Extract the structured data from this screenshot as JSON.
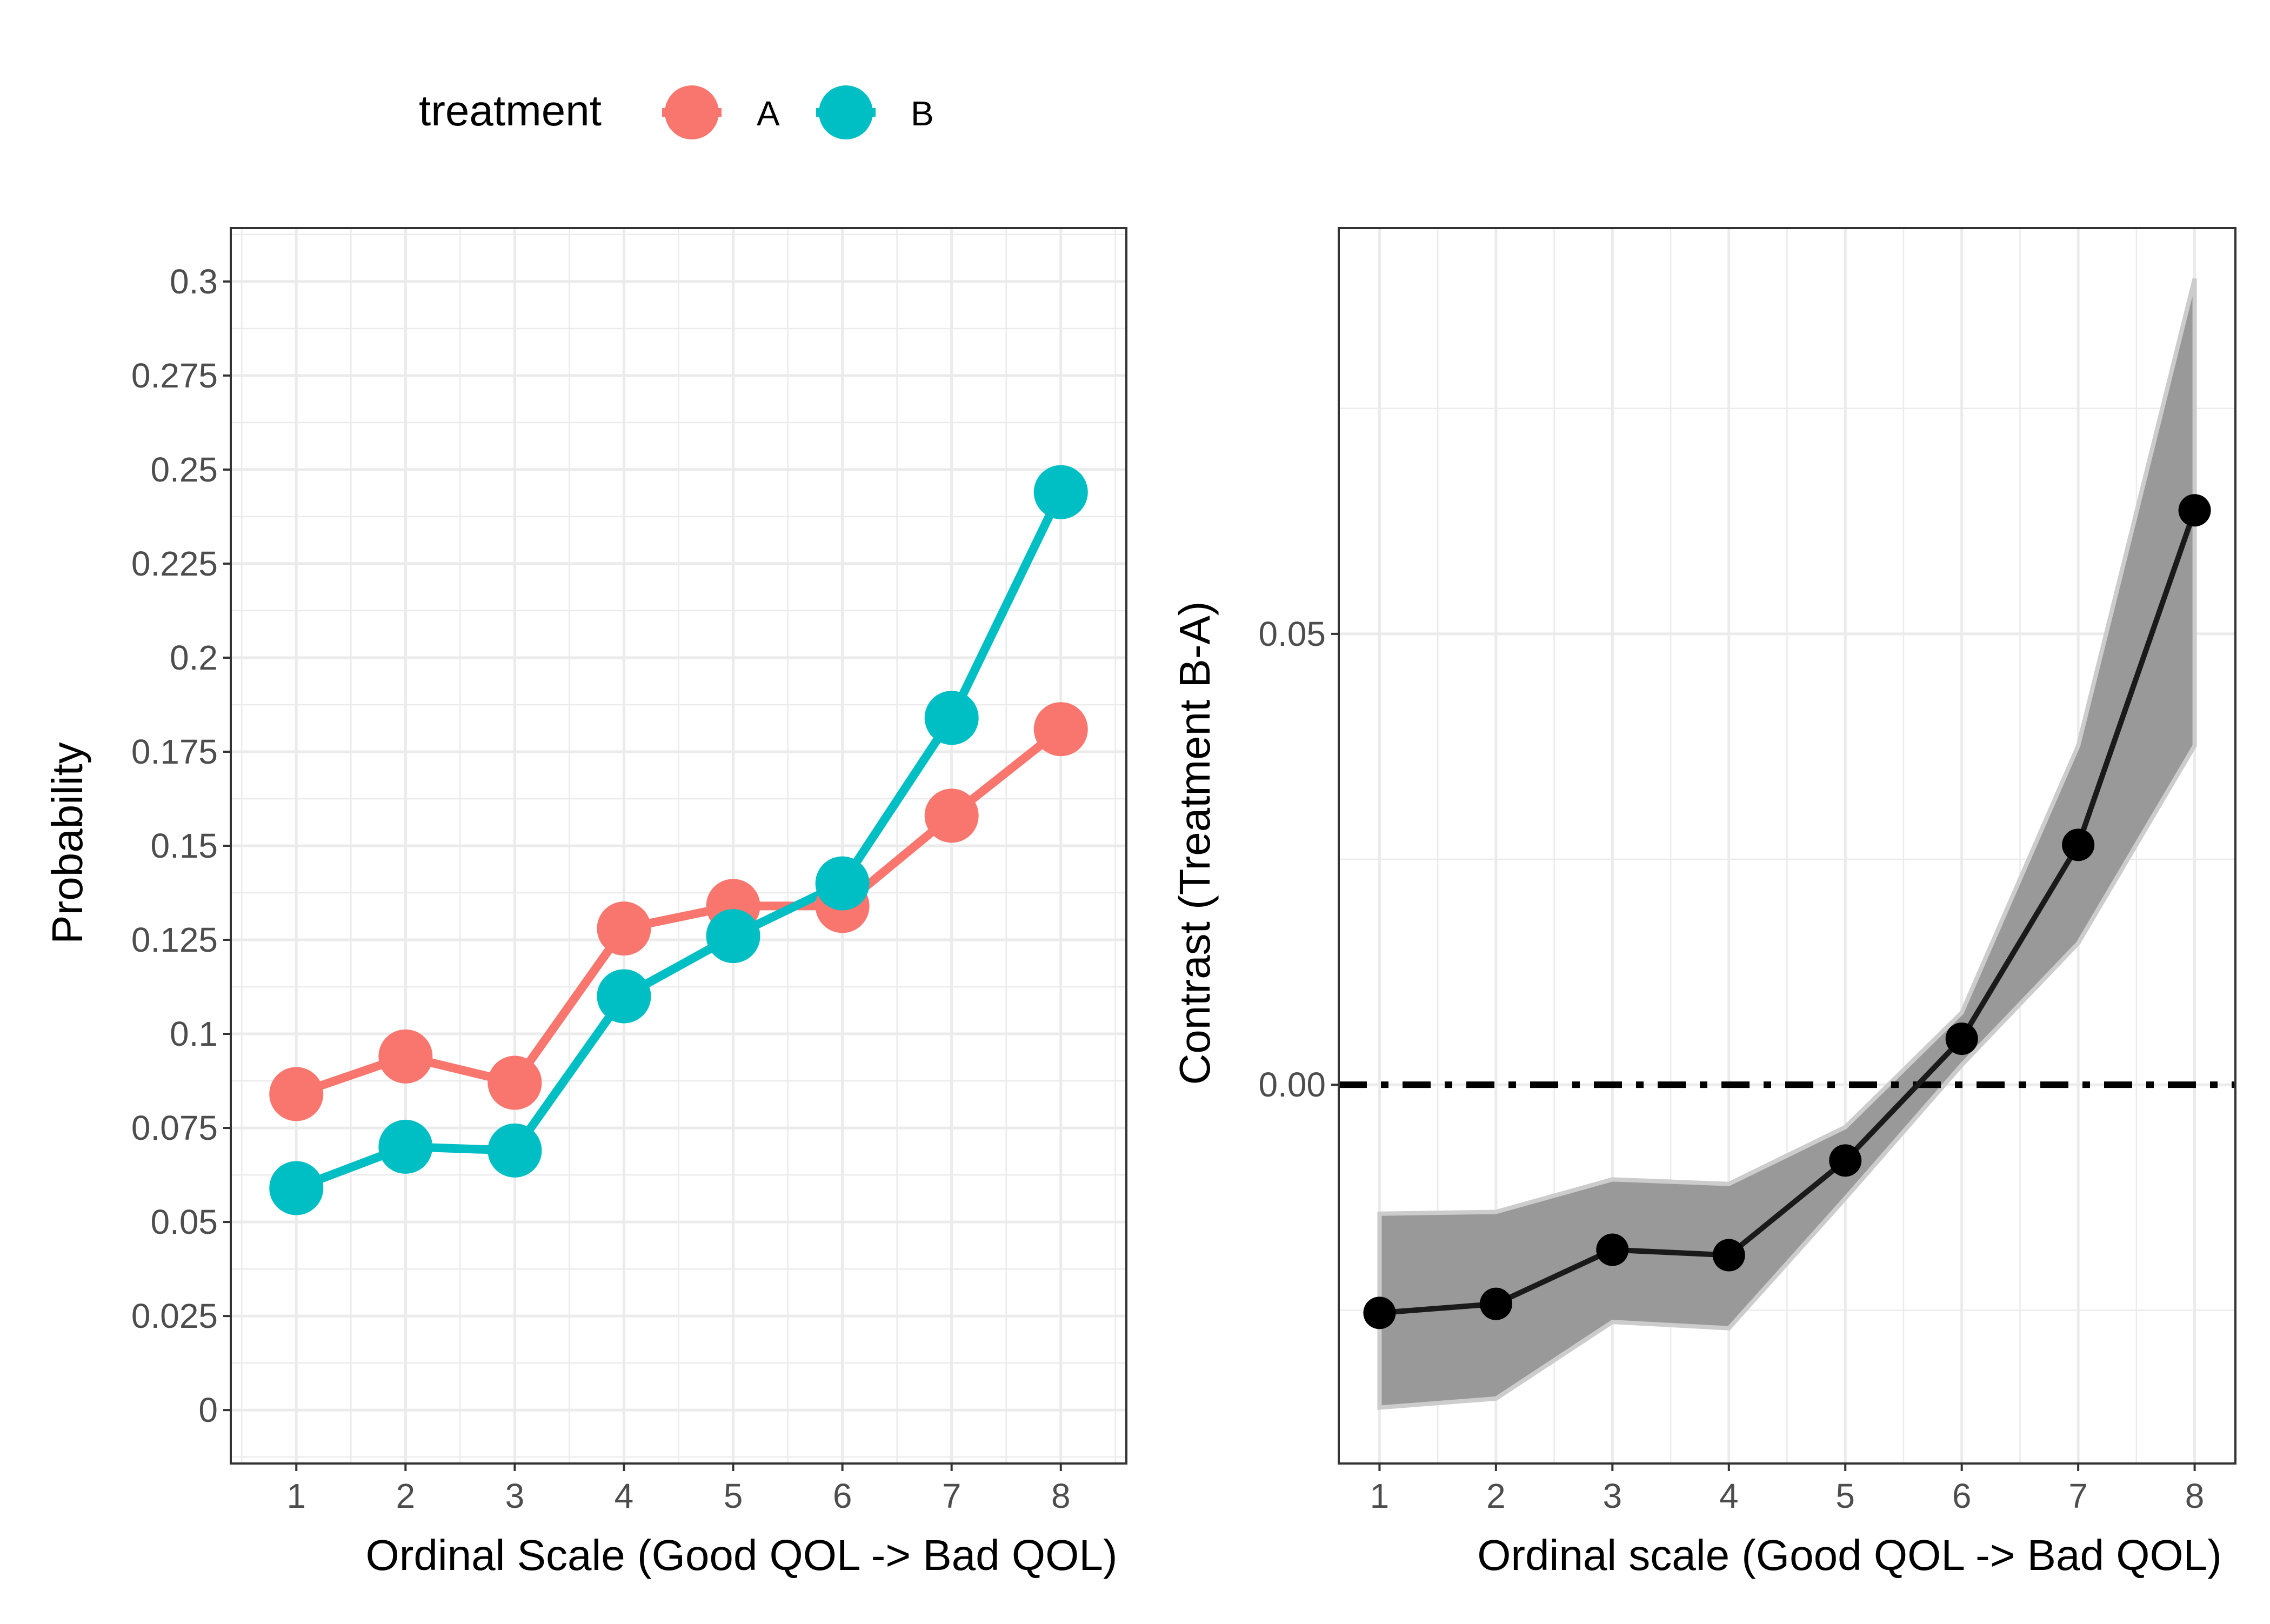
{
  "legend": {
    "title": "treatment",
    "entries": [
      {
        "label": "A",
        "color": "#F8766D"
      },
      {
        "label": "B",
        "color": "#00BFC4"
      }
    ]
  },
  "chart_data": [
    {
      "type": "line",
      "title": "",
      "xlabel": "Ordinal Scale (Good QOL -> Bad QOL)",
      "ylabel": "Probability",
      "x": [
        1,
        2,
        3,
        4,
        5,
        6,
        7,
        8
      ],
      "x_ticks": [
        "1",
        "2",
        "3",
        "4",
        "5",
        "6",
        "7",
        "8"
      ],
      "y_ticks": [
        {
          "value": 0,
          "label": "0"
        },
        {
          "value": 0.025,
          "label": "0.025"
        },
        {
          "value": 0.05,
          "label": "0.05"
        },
        {
          "value": 0.075,
          "label": "0.075"
        },
        {
          "value": 0.1,
          "label": "0.1"
        },
        {
          "value": 0.125,
          "label": "0.125"
        },
        {
          "value": 0.15,
          "label": "0.15"
        },
        {
          "value": 0.175,
          "label": "0.175"
        },
        {
          "value": 0.2,
          "label": "0.2"
        },
        {
          "value": 0.225,
          "label": "0.225"
        },
        {
          "value": 0.25,
          "label": "0.25"
        },
        {
          "value": 0.275,
          "label": "0.275"
        },
        {
          "value": 0.3,
          "label": "0.3"
        }
      ],
      "xlim": [
        0.4,
        8.6
      ],
      "ylim": [
        -0.0142,
        0.3142
      ],
      "grid": true,
      "legend_position": "top",
      "series": [
        {
          "name": "A",
          "color": "#F8766D",
          "values": [
            0.084,
            0.094,
            0.087,
            0.128,
            0.134,
            0.134,
            0.158,
            0.181
          ]
        },
        {
          "name": "B",
          "color": "#00BFC4",
          "values": [
            0.059,
            0.07,
            0.069,
            0.11,
            0.126,
            0.14,
            0.184,
            0.244
          ]
        }
      ]
    },
    {
      "type": "line",
      "title": "",
      "xlabel": "Ordinal scale (Good QOL -> Bad QOL)",
      "ylabel": "Contrast (Treatment B-A)",
      "x": [
        1,
        2,
        3,
        4,
        5,
        6,
        7,
        8
      ],
      "x_ticks": [
        "1",
        "2",
        "3",
        "4",
        "5",
        "6",
        "7",
        "8"
      ],
      "y_ticks": [
        {
          "value": 0,
          "label": "0.00"
        },
        {
          "value": 0.05,
          "label": "0.05"
        }
      ],
      "xlim": [
        0.65,
        8.35
      ],
      "ylim": [
        -0.042,
        0.095
      ],
      "grid": true,
      "reference_line": {
        "y": 0,
        "style": "dot-dash",
        "color": "#000000"
      },
      "series": [
        {
          "name": "",
          "color": "#1a1a1a",
          "values": [
            -0.0253,
            -0.0243,
            -0.0183,
            -0.0189,
            -0.0084,
            0.0051,
            0.0266,
            0.0637
          ],
          "lower": [
            -0.0358,
            -0.0348,
            -0.0263,
            -0.027,
            -0.0126,
            0.0022,
            0.0157,
            0.0376
          ],
          "upper": [
            -0.0143,
            -0.0141,
            -0.0105,
            -0.011,
            -0.0047,
            0.008,
            0.0376,
            0.0894
          ],
          "band_color": "#999999"
        }
      ]
    }
  ]
}
